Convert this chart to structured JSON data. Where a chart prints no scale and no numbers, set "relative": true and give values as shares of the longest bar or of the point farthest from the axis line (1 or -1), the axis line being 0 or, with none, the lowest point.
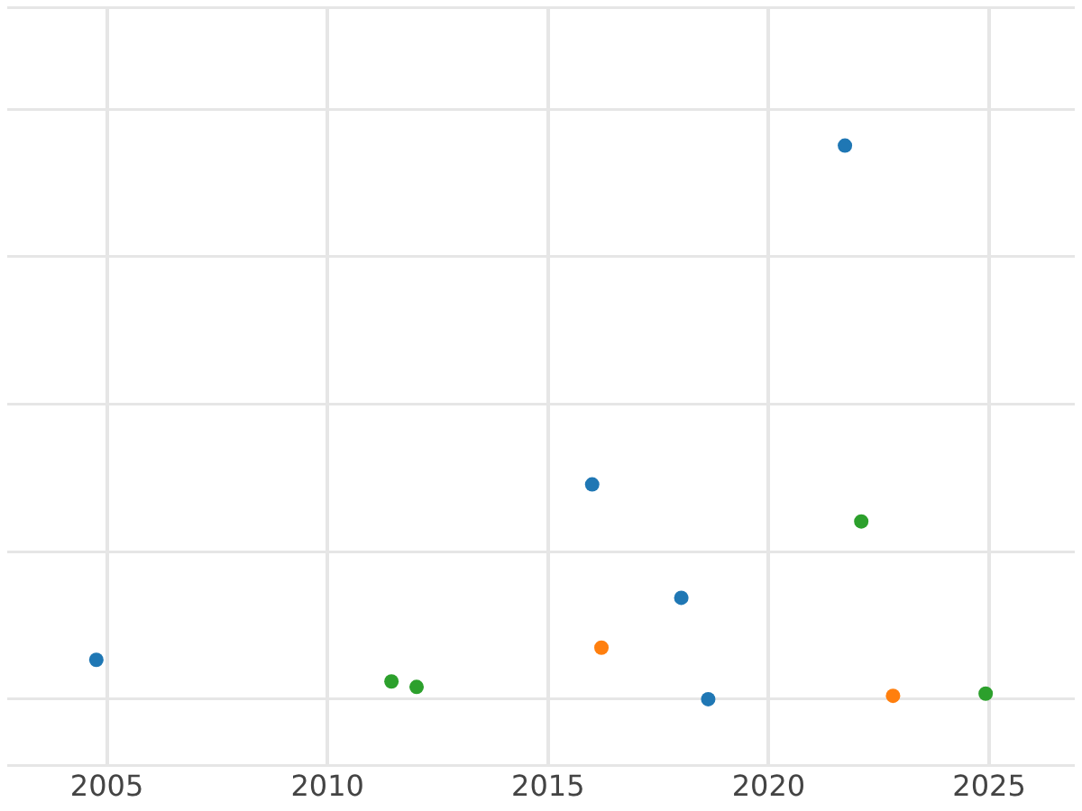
{
  "chart_data": {
    "type": "scatter",
    "relative": true,
    "xlim": [
      2002.74,
      2026.94
    ],
    "xticks": [
      2005,
      2010,
      2015,
      2020,
      2025
    ],
    "grid": true,
    "tick_labels": "x",
    "marker": "circle",
    "legend": false,
    "series": [
      {
        "color": "#1f77b4",
        "x": [
          2021.73,
          2016.0,
          2018.02,
          2004.76,
          2018.63
        ],
        "values": [
          1,
          0.388,
          0.183,
          0.071,
          0
        ]
      },
      {
        "color": "#ff7f0e",
        "x": [
          2016.21,
          2022.82
        ],
        "values": [
          0.093,
          0.006
        ]
      },
      {
        "color": "#2ca02c",
        "x": [
          2022.1,
          2011.45,
          2012.02,
          2024.92
        ],
        "values": [
          0.321,
          0.032,
          0.022,
          0.01
        ]
      }
    ]
  }
}
